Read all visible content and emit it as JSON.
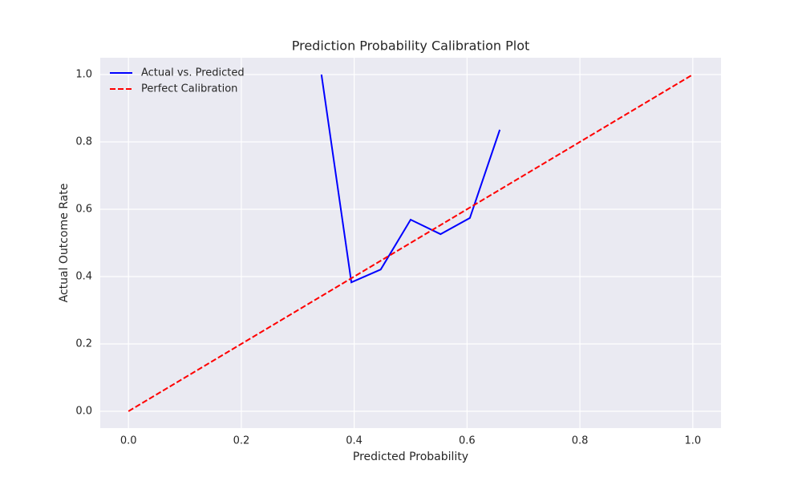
{
  "chart_data": {
    "type": "line",
    "title": "Prediction Probability Calibration Plot",
    "x_label": "Predicted Probability",
    "y_label": "Actual Outcome Rate",
    "series": [
      {
        "name": "Actual vs. Predicted",
        "color": "#0000ff",
        "style": "solid",
        "x": [
          0.342,
          0.395,
          0.447,
          0.5,
          0.553,
          0.605,
          0.658
        ],
        "values": [
          1.0,
          0.383,
          0.421,
          0.569,
          0.526,
          0.574,
          0.836
        ]
      },
      {
        "name": "Perfect Calibration",
        "color": "#ff0000",
        "style": "dashed",
        "x": [
          0,
          1
        ],
        "values": [
          0,
          1
        ]
      }
    ],
    "xlim": [
      -0.05,
      1.05
    ],
    "ylim": [
      -0.05,
      1.05
    ],
    "xticks": [
      {
        "value": 0,
        "label": "0.0"
      },
      0.2,
      0.4,
      0.6,
      0.8,
      {
        "value": 1,
        "label": "1.0"
      }
    ],
    "yticks": [
      {
        "value": 0,
        "label": "0.0"
      },
      0.2,
      0.4,
      0.6,
      0.8,
      {
        "value": 1,
        "label": "1.0"
      }
    ],
    "grid": true,
    "legend": "upper-left"
  }
}
